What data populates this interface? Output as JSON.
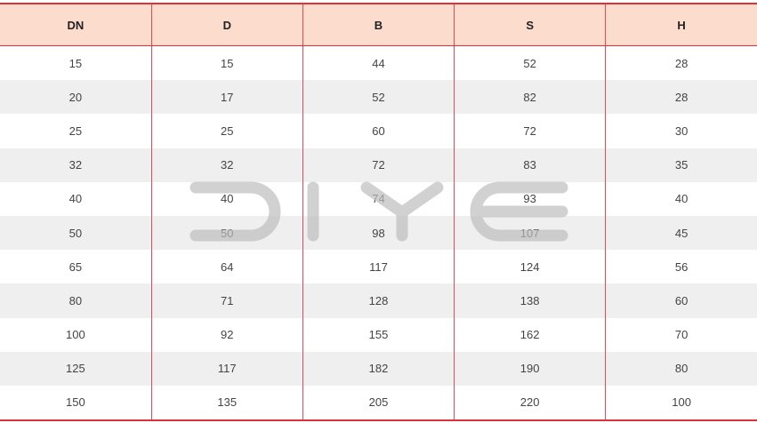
{
  "watermark": "DIYE",
  "colors": {
    "header_bg": "#fbdccd",
    "border": "#e0303c",
    "stripe": "#efefef",
    "watermark": "#c8c8c8"
  },
  "table": {
    "headers": [
      "DN",
      "D",
      "B",
      "S",
      "H"
    ],
    "rows": [
      [
        "15",
        "15",
        "44",
        "52",
        "28"
      ],
      [
        "20",
        "17",
        "52",
        "82",
        "28"
      ],
      [
        "25",
        "25",
        "60",
        "72",
        "30"
      ],
      [
        "32",
        "32",
        "72",
        "83",
        "35"
      ],
      [
        "40",
        "40",
        "74",
        "93",
        "40"
      ],
      [
        "50",
        "50",
        "98",
        "107",
        "45"
      ],
      [
        "65",
        "64",
        "117",
        "124",
        "56"
      ],
      [
        "80",
        "71",
        "128",
        "138",
        "60"
      ],
      [
        "100",
        "92",
        "155",
        "162",
        "70"
      ],
      [
        "125",
        "117",
        "182",
        "190",
        "80"
      ],
      [
        "150",
        "135",
        "205",
        "220",
        "100"
      ]
    ]
  }
}
